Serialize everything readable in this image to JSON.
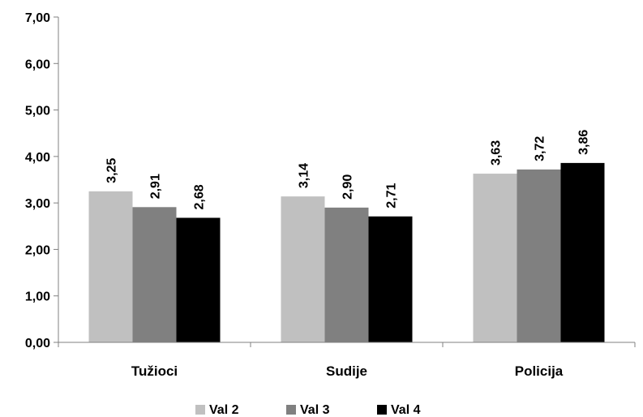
{
  "chart_data": {
    "type": "bar",
    "title": "",
    "xlabel": "",
    "ylabel": "",
    "ylim": [
      0,
      7
    ],
    "yticks": [
      "0,00",
      "1,00",
      "2,00",
      "3,00",
      "4,00",
      "5,00",
      "6,00",
      "7,00"
    ],
    "categories": [
      "Tužioci",
      "Sudije",
      "Policija"
    ],
    "series": [
      {
        "name": "Val 2",
        "color": "#c0c0c0",
        "values": [
          3.25,
          3.14,
          3.63
        ],
        "labels": [
          "3,25",
          "3,14",
          "3,63"
        ]
      },
      {
        "name": "Val 3",
        "color": "#808080",
        "values": [
          2.91,
          2.9,
          3.72
        ],
        "labels": [
          "2,91",
          "2,90",
          "3,72"
        ]
      },
      {
        "name": "Val 4",
        "color": "#000000",
        "values": [
          2.68,
          2.71,
          3.86
        ],
        "labels": [
          "2,68",
          "2,71",
          "3,86"
        ]
      }
    ],
    "grid": false,
    "legend_position": "bottom"
  }
}
